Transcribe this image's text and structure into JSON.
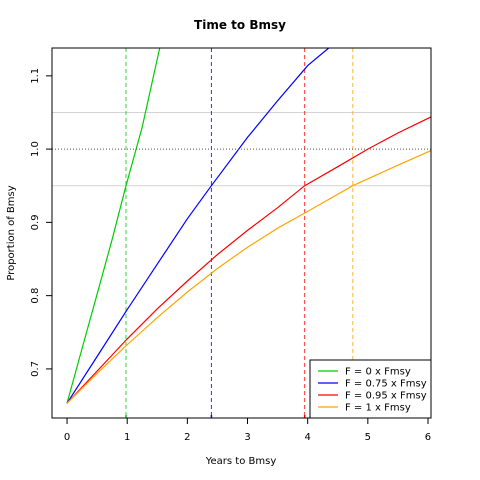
{
  "chart_data": {
    "type": "line",
    "title": "Time to Bmsy",
    "xlabel": "Years to Bmsy",
    "ylabel": "Proportion of Bmsy",
    "xlim": [
      -0.25,
      6.05
    ],
    "ylim": [
      0.633,
      1.138
    ],
    "x_ticks": [
      0,
      1,
      2,
      3,
      4,
      5,
      6
    ],
    "x_tick_labels": [
      "0",
      "1",
      "2",
      "3",
      "4",
      "5",
      "6"
    ],
    "y_ticks": [
      0.7,
      0.8,
      0.9,
      1.0,
      1.1
    ],
    "y_tick_labels": [
      "0.7",
      "0.8",
      "0.9",
      "1.0",
      "1.1"
    ],
    "reference_lines": {
      "bmsy": 1.0,
      "bounds": [
        0.95,
        1.05
      ]
    },
    "series": [
      {
        "name": "F = 0 x Fmsy",
        "color": "#00cd00",
        "x": [
          0,
          0.25,
          0.5,
          0.75,
          0.98,
          1.25,
          1.54
        ],
        "y": [
          0.653,
          0.728,
          0.802,
          0.877,
          0.95,
          1.03,
          1.138
        ],
        "time_to_bmsy": 0.98
      },
      {
        "name": "F = 0.75 x Fmsy",
        "color": "#0000ff",
        "x": [
          0,
          0.5,
          1,
          1.5,
          2,
          2.4,
          3,
          3.5,
          4,
          4.35
        ],
        "y": [
          0.653,
          0.717,
          0.781,
          0.843,
          0.905,
          0.95,
          1.016,
          1.066,
          1.114,
          1.138
        ],
        "time_to_bmsy": 2.4
      },
      {
        "name": "F = 0.95 x Fmsy",
        "color": "#ff0000",
        "x": [
          0,
          0.5,
          1,
          1.5,
          2,
          2.5,
          3,
          3.5,
          3.95,
          4.5,
          5,
          5.5,
          6.05
        ],
        "y": [
          0.653,
          0.697,
          0.741,
          0.782,
          0.82,
          0.856,
          0.889,
          0.92,
          0.95,
          0.976,
          1.0,
          1.022,
          1.044
        ],
        "time_to_bmsy": 3.95
      },
      {
        "name": "F = 1 x Fmsy",
        "color": "#ffa500",
        "x": [
          0,
          0.5,
          1,
          1.5,
          2,
          2.5,
          3,
          3.5,
          4,
          4.75,
          5.5,
          6.05
        ],
        "y": [
          0.653,
          0.694,
          0.733,
          0.77,
          0.805,
          0.837,
          0.866,
          0.892,
          0.915,
          0.95,
          0.978,
          0.998
        ],
        "time_to_bmsy": 4.75
      }
    ],
    "legend": {
      "position": "bottom-right",
      "entries": [
        "F = 0 x Fmsy",
        "F = 0.75 x Fmsy",
        "F = 0.95 x Fmsy",
        "F = 1 x Fmsy"
      ]
    }
  }
}
